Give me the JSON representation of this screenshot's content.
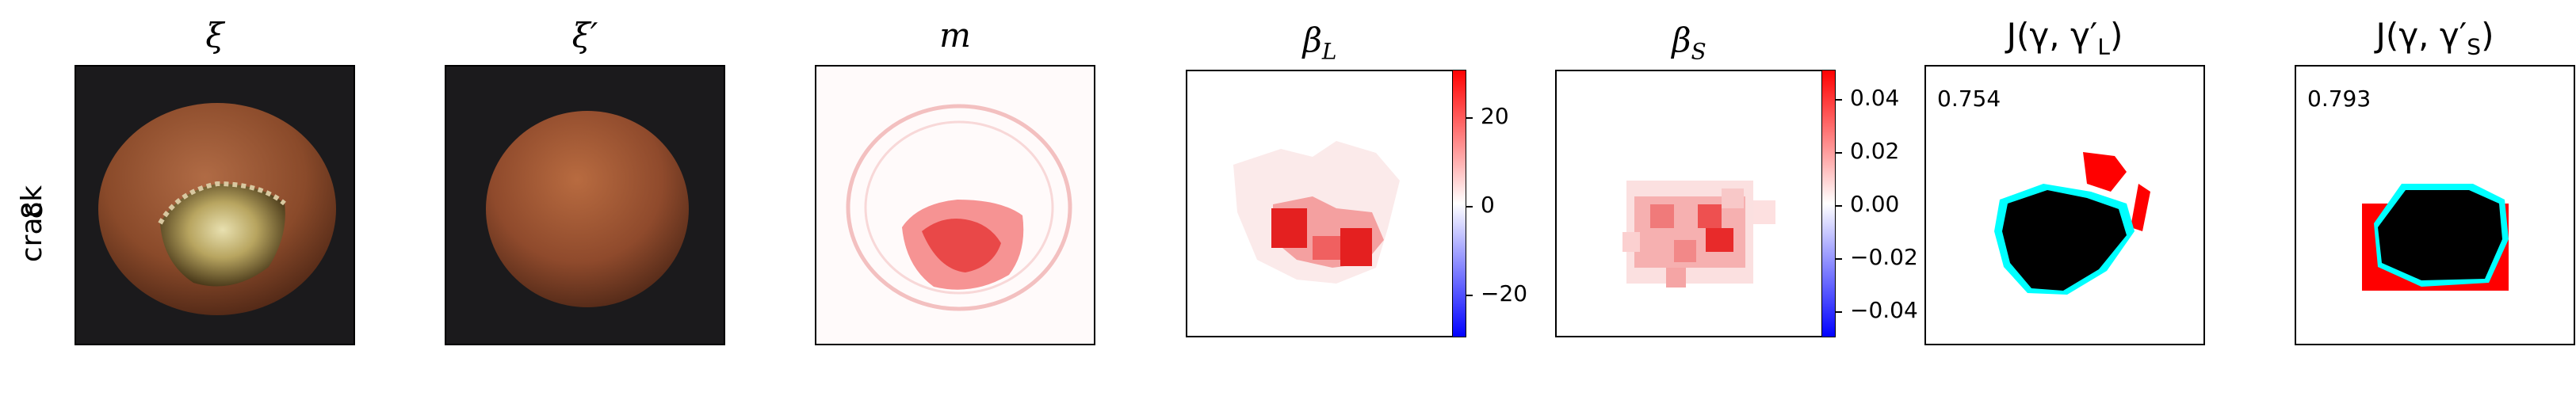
{
  "row": {
    "label_line1": "crack",
    "label_line2": "8"
  },
  "panels": [
    {
      "title": "ξ"
    },
    {
      "title": "ξ′"
    },
    {
      "title": "m"
    },
    {
      "title": "β_L",
      "title_main": "β",
      "title_sub": "L",
      "colorbar": {
        "ticks": [
          "20",
          "0",
          "−20"
        ],
        "values": [
          20,
          0,
          -20
        ],
        "range": [
          -30,
          30
        ]
      }
    },
    {
      "title": "β_S",
      "title_main": "β",
      "title_sub": "S",
      "colorbar": {
        "ticks": [
          "0.04",
          "0.02",
          "0.00",
          "−0.02",
          "−0.04"
        ],
        "values": [
          0.04,
          0.02,
          0.0,
          -0.02,
          -0.04
        ],
        "range": [
          -0.05,
          0.05
        ]
      }
    },
    {
      "title": "J(γ, γ′_L)",
      "title_text": "J(γ, γ′",
      "title_sub": "L",
      "title_end": ")",
      "score": "0.754"
    },
    {
      "title": "J(γ, γ′_S)",
      "title_text": "J(γ, γ′",
      "title_sub": "S",
      "title_end": ")",
      "score": "0.793"
    }
  ],
  "colors": {
    "positive": "#ff0000",
    "negative": "#0000ff",
    "overlay": "#00ffff",
    "mask": "#000000"
  }
}
